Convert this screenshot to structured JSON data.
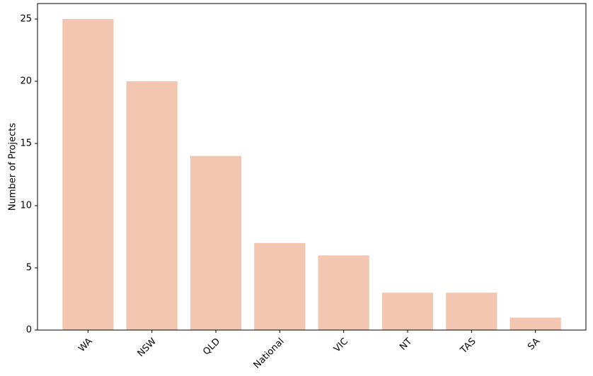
{
  "chart_data": {
    "type": "bar",
    "y_label": "Number of Projects",
    "categories": [
      "WA",
      "NSW",
      "QLD",
      "National",
      "VIC",
      "NT",
      "TAS",
      "SA"
    ],
    "values": [
      25,
      20,
      14,
      7,
      6,
      3,
      3,
      1
    ],
    "color": "#f2c6b0",
    "ylim": [
      0,
      26.25
    ],
    "yticks": [
      0,
      5,
      10,
      15,
      20,
      25
    ],
    "grid": false
  }
}
